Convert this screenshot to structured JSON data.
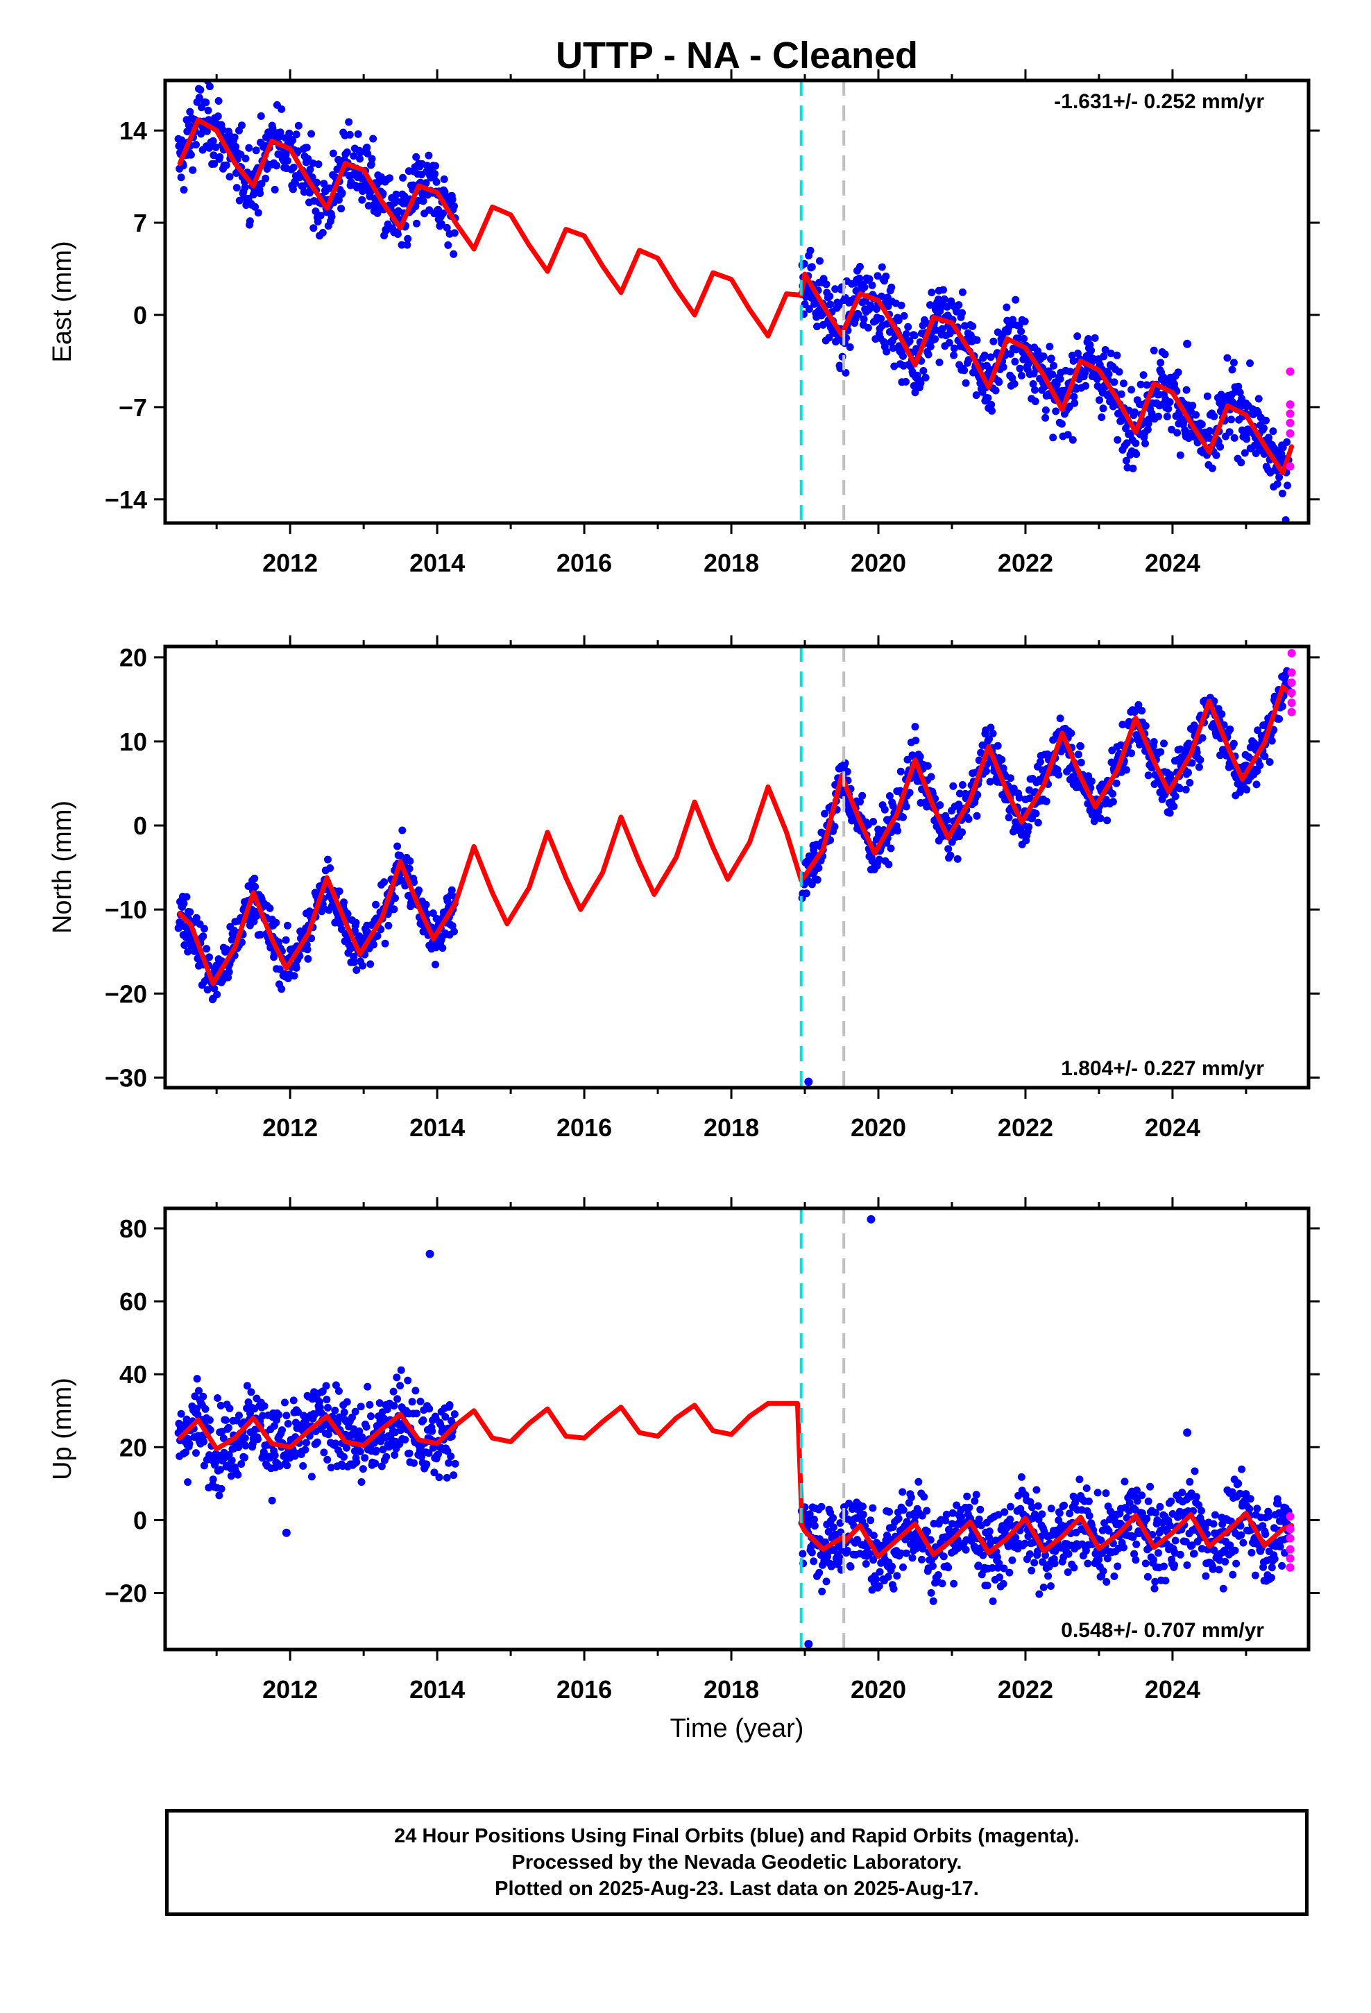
{
  "chart_data": {
    "type": "scatter",
    "title": "UTTP  - NA - Cleaned",
    "x_range": [
      2010.3,
      2025.85
    ],
    "x_ticks": [
      2012,
      2014,
      2016,
      2018,
      2020,
      2022,
      2024
    ],
    "xlabel": "Time (year)",
    "event_lines": [
      {
        "x": 2018.95,
        "color": "#00e0e0",
        "style": "dashed"
      },
      {
        "x": 2019.53,
        "color": "#c0c0c0",
        "style": "dashed"
      }
    ],
    "data_gap": [
      2014.25,
      2018.95
    ],
    "series_colors": {
      "final_orbits": "#0000ff",
      "rapid_orbits": "#ff00ff",
      "model_fit": "#ff0000"
    },
    "panels": [
      {
        "component": "East",
        "ylabel": "East (mm)",
        "ylim": [
          -15.8,
          17.8
        ],
        "y_ticks": [
          14,
          7,
          0,
          -7,
          -14
        ],
        "y_tick_labels": [
          "14",
          "7",
          "0",
          "−7",
          "−14"
        ],
        "rate_text": "-1.631+/- 0.252 mm/yr",
        "rate_position": "top-right",
        "rate_mm_per_yr": -1.631,
        "seasonal_amplitude_mm": 2.3,
        "model_fit": {
          "x": [
            2010.5,
            2010.75,
            2011.0,
            2011.25,
            2011.5,
            2011.75,
            2012.0,
            2012.25,
            2012.5,
            2012.75,
            2013.0,
            2013.25,
            2013.5,
            2013.75,
            2014.0,
            2014.25,
            2014.5,
            2014.75,
            2015.0,
            2015.25,
            2015.5,
            2015.75,
            2016.0,
            2016.25,
            2016.5,
            2016.75,
            2017.0,
            2017.25,
            2017.5,
            2017.75,
            2018.0,
            2018.25,
            2018.5,
            2018.75,
            2018.95,
            2019.0,
            2019.25,
            2019.5,
            2019.75,
            2020.0,
            2020.25,
            2020.5,
            2020.75,
            2021.0,
            2021.25,
            2021.5,
            2021.75,
            2022.0,
            2022.25,
            2022.5,
            2022.75,
            2023.0,
            2023.25,
            2023.5,
            2023.75,
            2024.0,
            2024.25,
            2024.5,
            2024.75,
            2025.0,
            2025.25,
            2025.5,
            2025.62
          ],
          "y": [
            11.5,
            14.8,
            14.0,
            11.5,
            9.8,
            13.2,
            12.6,
            10.2,
            8.1,
            11.5,
            11.0,
            8.6,
            6.6,
            9.8,
            9.3,
            7.0,
            5.0,
            8.2,
            7.6,
            5.3,
            3.3,
            6.5,
            6.0,
            3.7,
            1.7,
            4.9,
            4.3,
            2.0,
            0.0,
            3.2,
            2.7,
            0.4,
            -1.6,
            1.6,
            1.5,
            3.1,
            0.7,
            -1.5,
            1.6,
            1.1,
            -1.2,
            -3.8,
            -0.2,
            -0.6,
            -2.8,
            -5.5,
            -1.8,
            -2.5,
            -4.6,
            -7.2,
            -3.5,
            -4.2,
            -6.4,
            -8.9,
            -5.2,
            -5.9,
            -8.2,
            -10.4,
            -6.9,
            -7.6,
            -9.9,
            -12.0,
            -10.0
          ]
        },
        "observations": {
          "points_plotted": "dense daily positions",
          "outlier": [
            2024.2,
            -2.2
          ]
        },
        "rapid_orbits": {
          "x": [
            2025.6,
            2025.6,
            2025.6,
            2025.6,
            2025.6,
            2025.6
          ],
          "y": [
            -4.3,
            -6.8,
            -7.5,
            -8.2,
            -9.0,
            -11.5
          ]
        }
      },
      {
        "component": "North",
        "ylabel": "North (mm)",
        "ylim": [
          -31.2,
          21.3
        ],
        "y_ticks": [
          20,
          10,
          0,
          -10,
          -20,
          -30
        ],
        "y_tick_labels": [
          "20",
          "10",
          "0",
          "−10",
          "−20",
          "−30"
        ],
        "rate_text": "1.804+/- 0.227 mm/yr",
        "rate_position": "bottom-right",
        "rate_mm_per_yr": 1.804,
        "seasonal_amplitude_mm": 5.5,
        "model_fit": {
          "x": [
            2010.5,
            2010.65,
            2010.95,
            2011.25,
            2011.5,
            2011.75,
            2011.95,
            2012.25,
            2012.5,
            2012.75,
            2012.95,
            2013.25,
            2013.5,
            2013.75,
            2013.95,
            2014.25,
            2014.5,
            2014.75,
            2014.95,
            2015.25,
            2015.5,
            2015.75,
            2015.95,
            2016.25,
            2016.5,
            2016.75,
            2016.95,
            2017.25,
            2017.5,
            2017.75,
            2017.95,
            2018.25,
            2018.5,
            2018.75,
            2018.95,
            2019.0,
            2019.25,
            2019.5,
            2019.75,
            2019.95,
            2020.25,
            2020.5,
            2020.75,
            2020.95,
            2021.25,
            2021.5,
            2021.75,
            2021.95,
            2022.25,
            2022.5,
            2022.75,
            2022.95,
            2023.25,
            2023.5,
            2023.75,
            2023.95,
            2024.25,
            2024.5,
            2024.75,
            2024.95,
            2025.25,
            2025.5,
            2025.62
          ],
          "y": [
            -10.5,
            -11.8,
            -18.8,
            -14.5,
            -8.0,
            -13.5,
            -17.0,
            -12.8,
            -6.2,
            -11.5,
            -15.3,
            -11.0,
            -4.3,
            -9.7,
            -13.5,
            -9.2,
            -2.5,
            -8.0,
            -11.7,
            -7.4,
            -0.8,
            -6.2,
            -10.0,
            -5.6,
            1.0,
            -4.4,
            -8.2,
            -3.8,
            2.8,
            -2.6,
            -6.4,
            -2.0,
            4.6,
            -0.8,
            -6.5,
            -6.0,
            -2.8,
            5.9,
            0.5,
            -3.3,
            1.3,
            7.8,
            2.2,
            -1.5,
            3.1,
            9.4,
            4.0,
            0.4,
            4.8,
            11.0,
            5.8,
            2.2,
            6.6,
            12.8,
            7.6,
            4.0,
            8.5,
            14.8,
            9.4,
            5.5,
            9.8,
            16.5,
            15.5
          ]
        },
        "observations": {
          "points_plotted": "dense daily positions",
          "outlier": [
            2019.05,
            -30.5
          ]
        },
        "rapid_orbits": {
          "x": [
            2025.62,
            2025.62,
            2025.62,
            2025.62,
            2025.62,
            2025.62
          ],
          "y": [
            20.5,
            18.2,
            17.0,
            15.8,
            14.6,
            13.5
          ]
        }
      },
      {
        "component": "Up",
        "ylabel": "Up (mm)",
        "ylim": [
          -35.5,
          85.5
        ],
        "y_ticks": [
          80,
          60,
          40,
          20,
          0,
          -20
        ],
        "y_tick_labels": [
          "80",
          "60",
          "40",
          "20",
          "0",
          "−20"
        ],
        "rate_text": "0.548+/- 0.707 mm/yr",
        "rate_position": "bottom-right",
        "rate_mm_per_yr": 0.548,
        "seasonal_amplitude_mm": 4.5,
        "offset_at_2018_95_mm": -32.0,
        "model_fit": {
          "x": [
            2010.5,
            2010.75,
            2011.0,
            2011.25,
            2011.5,
            2011.75,
            2012.0,
            2012.25,
            2012.5,
            2012.75,
            2013.0,
            2013.25,
            2013.5,
            2013.75,
            2014.0,
            2014.25,
            2014.5,
            2014.75,
            2015.0,
            2015.25,
            2015.5,
            2015.75,
            2016.0,
            2016.25,
            2016.5,
            2016.75,
            2017.0,
            2017.25,
            2017.5,
            2017.75,
            2018.0,
            2018.25,
            2018.5,
            2018.75,
            2018.9,
            2018.95,
            2018.96,
            2019.0,
            2019.25,
            2019.53,
            2019.54,
            2019.75,
            2020.0,
            2020.25,
            2020.5,
            2020.75,
            2021.0,
            2021.25,
            2021.5,
            2021.75,
            2022.0,
            2022.25,
            2022.5,
            2022.75,
            2023.0,
            2023.25,
            2023.5,
            2023.75,
            2024.0,
            2024.25,
            2024.5,
            2024.75,
            2025.0,
            2025.25,
            2025.5,
            2025.62
          ],
          "y": [
            22.5,
            27.5,
            19.5,
            22.5,
            28.0,
            21.0,
            20.0,
            24.5,
            28.5,
            21.5,
            20.5,
            25.0,
            29.0,
            22.0,
            21.0,
            26.0,
            30.0,
            22.5,
            21.5,
            26.5,
            30.5,
            23.0,
            22.5,
            27.0,
            31.0,
            24.0,
            23.0,
            28.0,
            31.5,
            24.5,
            23.5,
            28.5,
            32.0,
            32.0,
            32.0,
            5.0,
            -1.5,
            -3.0,
            -8.0,
            -4.5,
            -6.0,
            -1.5,
            -10.0,
            -5.5,
            -1.0,
            -9.5,
            -5.5,
            -0.5,
            -9.0,
            -5.0,
            0.5,
            -8.5,
            -4.5,
            0.8,
            -7.8,
            -4.0,
            1.2,
            -7.5,
            -3.5,
            1.5,
            -7.2,
            -3.0,
            1.8,
            -7.0,
            -2.5,
            -1.5
          ]
        },
        "observations": {
          "points_plotted": "dense daily positions",
          "outliers": [
            [
              2013.9,
              73.0
            ],
            [
              2019.9,
              82.5
            ],
            [
              2011.95,
              -3.5
            ],
            [
              2024.2,
              24.0
            ],
            [
              2019.05,
              -34.0
            ]
          ]
        },
        "rapid_orbits": {
          "x": [
            2025.6,
            2025.6,
            2025.6,
            2025.6,
            2025.6,
            2025.6
          ],
          "y": [
            1.0,
            -2.5,
            -5.0,
            -8.0,
            -10.5,
            -13.0
          ]
        }
      }
    ]
  },
  "footer": {
    "line1": "24 Hour Positions Using Final Orbits (blue) and Rapid Orbits (magenta).",
    "line2": "Processed by the Nevada Geodetic Laboratory.",
    "line3": "Plotted on 2025-Aug-23. Last data on 2025-Aug-17."
  }
}
